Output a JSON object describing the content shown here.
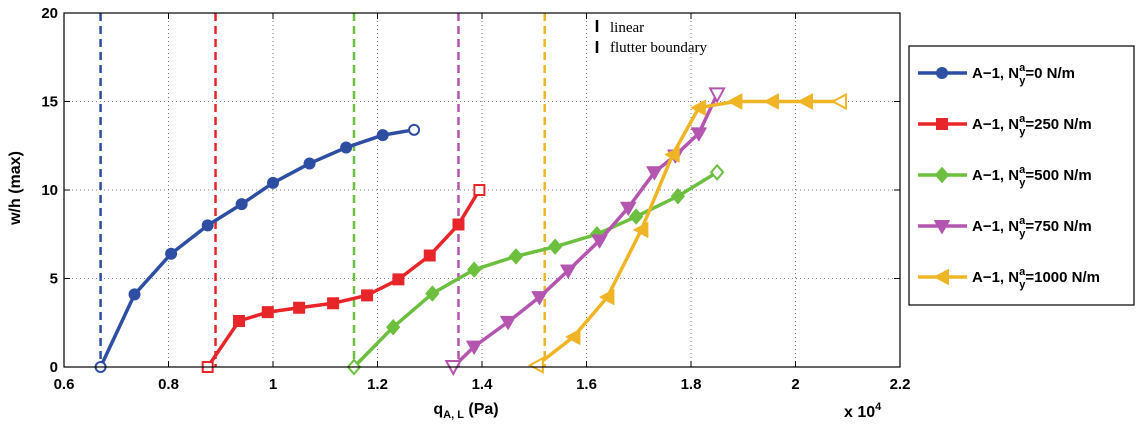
{
  "chart_data": {
    "type": "line",
    "title": "",
    "xlabel": {
      "main": "q",
      "sub": "A, L",
      "suffix": " (Pa)"
    },
    "ylabel": "w/h (max)",
    "x_multiplier": {
      "prefix": "x 10",
      "exponent": "4"
    },
    "xlim": [
      0.6,
      2.2
    ],
    "ylim": [
      0,
      20
    ],
    "xticks": [
      0.6,
      0.8,
      1.0,
      1.2,
      1.4,
      1.6,
      1.8,
      2.0,
      2.2
    ],
    "xtick_labels": [
      "0.6",
      "0.8",
      "1",
      "1.2",
      "1.4",
      "1.6",
      "1.8",
      "2",
      "2.2"
    ],
    "yticks": [
      0,
      5,
      10,
      15,
      20
    ],
    "ytick_labels": [
      "0",
      "5",
      "10",
      "15",
      "20"
    ],
    "grid": true,
    "legend_position": "outside-right",
    "annotation": {
      "line1": "linear",
      "line2": "flutter boundary"
    },
    "series": [
      {
        "legend": {
          "base": "A−1, N",
          "sup": "a",
          "sub": "y",
          "tail": "=0 N/m"
        },
        "color": "#2d4ea3",
        "marker": "circle",
        "flutter_boundary": 0.67,
        "x": [
          0.67,
          0.735,
          0.805,
          0.875,
          0.94,
          1.0,
          1.07,
          1.14,
          1.21,
          1.27
        ],
        "y": [
          0,
          4.1,
          6.4,
          8.0,
          9.2,
          10.4,
          11.5,
          12.4,
          13.1,
          13.4
        ]
      },
      {
        "legend": {
          "base": "A−1, N",
          "sup": "a",
          "sub": "y",
          "tail": "=250 N/m"
        },
        "color": "#e8262a",
        "marker": "square",
        "flutter_boundary": 0.89,
        "x": [
          0.875,
          0.935,
          0.99,
          1.05,
          1.115,
          1.18,
          1.24,
          1.3,
          1.355,
          1.395
        ],
        "y": [
          0,
          2.6,
          3.1,
          3.35,
          3.6,
          4.05,
          4.95,
          6.3,
          8.05,
          10.0
        ]
      },
      {
        "legend": {
          "base": "A−1, N",
          "sup": "a",
          "sub": "y",
          "tail": "=500 N/m"
        },
        "color": "#6cbf3f",
        "marker": "diamond",
        "flutter_boundary": 1.155,
        "x": [
          1.155,
          1.23,
          1.305,
          1.385,
          1.465,
          1.54,
          1.62,
          1.695,
          1.775,
          1.85
        ],
        "y": [
          0,
          2.25,
          4.15,
          5.5,
          6.25,
          6.8,
          7.5,
          8.5,
          9.65,
          11.0
        ]
      },
      {
        "legend": {
          "base": "A−1, N",
          "sup": "a",
          "sub": "y",
          "tail": "=750 N/m"
        },
        "color": "#b455b0",
        "marker": "triangle-down",
        "flutter_boundary": 1.355,
        "x": [
          1.345,
          1.385,
          1.45,
          1.51,
          1.565,
          1.625,
          1.68,
          1.73,
          1.77,
          1.815,
          1.85
        ],
        "y": [
          0,
          1.15,
          2.55,
          3.95,
          5.45,
          7.15,
          9.0,
          11.0,
          11.95,
          13.2,
          15.4
        ]
      },
      {
        "legend": {
          "base": "A−1, N",
          "sup": "a",
          "sub": "y",
          "tail": "=1000 N/m"
        },
        "color": "#f0b527",
        "marker": "triangle-left",
        "flutter_boundary": 1.52,
        "x": [
          1.505,
          1.575,
          1.64,
          1.705,
          1.765,
          1.815,
          1.885,
          1.955,
          2.02,
          2.085
        ],
        "y": [
          0.1,
          1.7,
          3.95,
          7.75,
          12.0,
          14.65,
          15.0,
          15.0,
          15.0,
          15.0
        ]
      }
    ]
  }
}
